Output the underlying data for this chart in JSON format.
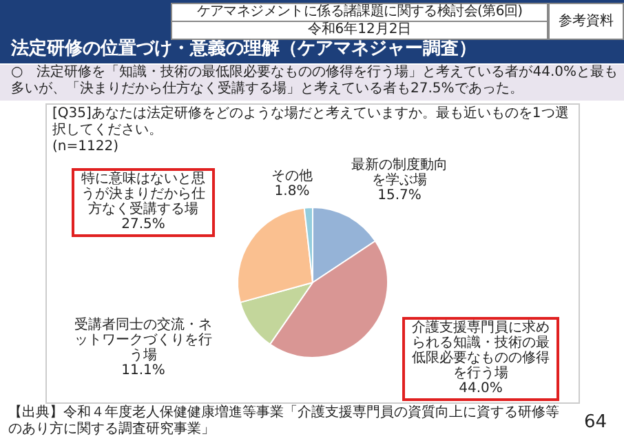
{
  "chart_data": {
    "type": "pie",
    "title": "法定研修の位置づけ・意義の理解（ケアマネジャー調査）",
    "subtitle": "○　法定研修を「知識・技術の最低限必要なものの修得を行う場」と考えている者が44.0%と最も多いが、「決まりだから仕方なく受講する場」と考えている者も27.5%であった。",
    "annotations": [
      "ケアマネジメントに係る諸課題に関する検討会(第6回)",
      "令和6年12月2日",
      "参考資料",
      "[Q35]あなたは法定研修をどのような場だと考えていますか。最も近いものを1つ選択してください。",
      "(n=1122)",
      "【出典】令和４年度老人保健健康増進等事業「介護支援専門員の資質向上に資する研修等のあり方に関する調査研究事業」",
      "64"
    ],
    "categories": [
      "最新の制度動向を学ぶ場",
      "介護支援専門員に求められる知識・技術の最低限必要なものの修得を行う場",
      "受講者同士の交流・ネットワークづくりを行う場",
      "特に意味はないと思うが決まりだから仕方なく受講する場",
      "その他"
    ],
    "values": [
      15.7,
      44.0,
      11.1,
      27.5,
      1.8
    ],
    "value_labels": [
      "15.7%",
      "44.0%",
      "11.1%",
      "27.5%",
      "1.8%"
    ],
    "colors": [
      "#95b3d7",
      "#d99694",
      "#c3d69b",
      "#fac090",
      "#93cddd"
    ],
    "legend": false
  }
}
